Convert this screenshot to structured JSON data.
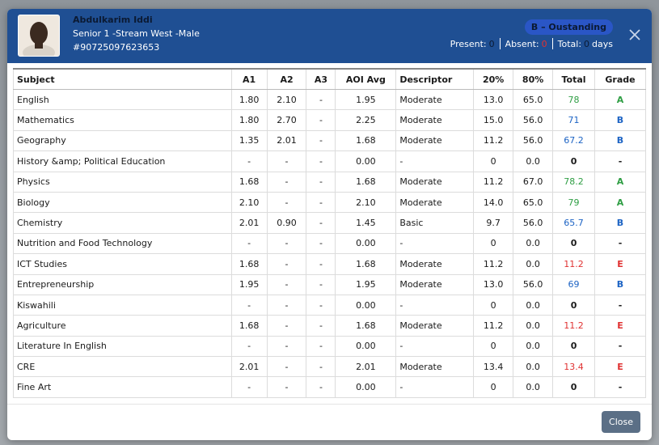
{
  "student": {
    "name": "Abdulkarim Iddi",
    "class_line": "Senior 1 -Stream West -Male",
    "id": "#90725097623653",
    "grade_badge": "B – Oustanding"
  },
  "attendance": {
    "present_label": "Present:",
    "present": "0",
    "absent_label": "Absent:",
    "absent": "0",
    "total_label": "Total:",
    "total": "0",
    "days_label": "days"
  },
  "table": {
    "headers": [
      "Subject",
      "A1",
      "A2",
      "A3",
      "AOI Avg",
      "Descriptor",
      "20%",
      "80%",
      "Total",
      "Grade"
    ],
    "rows": [
      {
        "subject": "English",
        "a1": "1.80",
        "a2": "2.10",
        "a3": "-",
        "aoi": "1.95",
        "desc": "Moderate",
        "p20": "13.0",
        "p80": "65.0",
        "total": "78",
        "grade": "A",
        "color": "green"
      },
      {
        "subject": "Mathematics",
        "a1": "1.80",
        "a2": "2.70",
        "a3": "-",
        "aoi": "2.25",
        "desc": "Moderate",
        "p20": "15.0",
        "p80": "56.0",
        "total": "71",
        "grade": "B",
        "color": "blue"
      },
      {
        "subject": "Geography",
        "a1": "1.35",
        "a2": "2.01",
        "a3": "-",
        "aoi": "1.68",
        "desc": "Moderate",
        "p20": "11.2",
        "p80": "56.0",
        "total": "67.2",
        "grade": "B",
        "color": "blue"
      },
      {
        "subject": "History &amp; Political Education",
        "a1": "-",
        "a2": "-",
        "a3": "-",
        "aoi": "0.00",
        "desc": "-",
        "p20": "0",
        "p80": "0.0",
        "total": "0",
        "grade": "-",
        "color": "black"
      },
      {
        "subject": "Physics",
        "a1": "1.68",
        "a2": "-",
        "a3": "-",
        "aoi": "1.68",
        "desc": "Moderate",
        "p20": "11.2",
        "p80": "67.0",
        "total": "78.2",
        "grade": "A",
        "color": "green"
      },
      {
        "subject": "Biology",
        "a1": "2.10",
        "a2": "-",
        "a3": "-",
        "aoi": "2.10",
        "desc": "Moderate",
        "p20": "14.0",
        "p80": "65.0",
        "total": "79",
        "grade": "A",
        "color": "green"
      },
      {
        "subject": "Chemistry",
        "a1": "2.01",
        "a2": "0.90",
        "a3": "-",
        "aoi": "1.45",
        "desc": "Basic",
        "p20": "9.7",
        "p80": "56.0",
        "total": "65.7",
        "grade": "B",
        "color": "blue"
      },
      {
        "subject": "Nutrition and Food Technology",
        "a1": "-",
        "a2": "-",
        "a3": "-",
        "aoi": "0.00",
        "desc": "-",
        "p20": "0",
        "p80": "0.0",
        "total": "0",
        "grade": "-",
        "color": "black"
      },
      {
        "subject": "ICT Studies",
        "a1": "1.68",
        "a2": "-",
        "a3": "-",
        "aoi": "1.68",
        "desc": "Moderate",
        "p20": "11.2",
        "p80": "0.0",
        "total": "11.2",
        "grade": "E",
        "color": "red"
      },
      {
        "subject": "Entrepreneurship",
        "a1": "1.95",
        "a2": "-",
        "a3": "-",
        "aoi": "1.95",
        "desc": "Moderate",
        "p20": "13.0",
        "p80": "56.0",
        "total": "69",
        "grade": "B",
        "color": "blue"
      },
      {
        "subject": "Kiswahili",
        "a1": "-",
        "a2": "-",
        "a3": "-",
        "aoi": "0.00",
        "desc": "-",
        "p20": "0",
        "p80": "0.0",
        "total": "0",
        "grade": "-",
        "color": "black"
      },
      {
        "subject": "Agriculture",
        "a1": "1.68",
        "a2": "-",
        "a3": "-",
        "aoi": "1.68",
        "desc": "Moderate",
        "p20": "11.2",
        "p80": "0.0",
        "total": "11.2",
        "grade": "E",
        "color": "red"
      },
      {
        "subject": "Literature In English",
        "a1": "-",
        "a2": "-",
        "a3": "-",
        "aoi": "0.00",
        "desc": "-",
        "p20": "0",
        "p80": "0.0",
        "total": "0",
        "grade": "-",
        "color": "black"
      },
      {
        "subject": "CRE",
        "a1": "2.01",
        "a2": "-",
        "a3": "-",
        "aoi": "2.01",
        "desc": "Moderate",
        "p20": "13.4",
        "p80": "0.0",
        "total": "13.4",
        "grade": "E",
        "color": "red"
      },
      {
        "subject": "Fine Art",
        "a1": "-",
        "a2": "-",
        "a3": "-",
        "aoi": "0.00",
        "desc": "-",
        "p20": "0",
        "p80": "0.0",
        "total": "0",
        "grade": "-",
        "color": "black"
      }
    ]
  },
  "footer": {
    "close_label": "Close"
  },
  "colors": {
    "header_bg": "#1f4f93",
    "green": "#2f9e44",
    "blue": "#1c63c4",
    "red": "#e03131",
    "close_button": "#5b6f86"
  },
  "icons": {
    "close": "close-icon",
    "avatar": "student-photo"
  }
}
